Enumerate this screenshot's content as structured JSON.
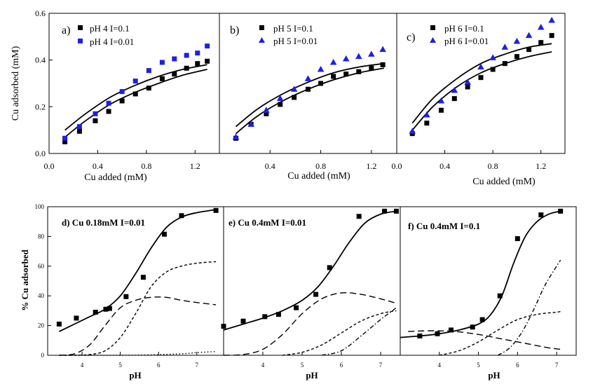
{
  "colors": {
    "black": "#000000",
    "blue": "#1f1fe6"
  },
  "chart_data": [
    {
      "type": "scatter",
      "panel": "a)",
      "xlabel": "Cu added (mM)",
      "ylabel": "Cu adsorbed (mM)",
      "xlim": [
        0.0,
        1.4
      ],
      "ylim": [
        0.0,
        0.6
      ],
      "xticks": [
        "0.0",
        "0.4",
        "0.8",
        "1.2"
      ],
      "yticks": [
        "0.0",
        "0.2",
        "0.4",
        "0.6"
      ],
      "legend": "top-left",
      "series": [
        {
          "name": "pH 4 I=0.1",
          "marker": "square",
          "color": "#000000",
          "x": [
            0.13,
            0.25,
            0.38,
            0.49,
            0.6,
            0.71,
            0.82,
            0.93,
            1.03,
            1.13,
            1.22,
            1.3
          ],
          "y": [
            0.05,
            0.095,
            0.14,
            0.18,
            0.225,
            0.255,
            0.28,
            0.32,
            0.34,
            0.365,
            0.385,
            0.395
          ]
        },
        {
          "name": "pH 4 I=0.01",
          "marker": "square",
          "color": "#1f1fe6",
          "x": [
            0.13,
            0.25,
            0.38,
            0.49,
            0.6,
            0.71,
            0.82,
            0.93,
            1.03,
            1.13,
            1.22,
            1.3
          ],
          "y": [
            0.065,
            0.115,
            0.17,
            0.215,
            0.265,
            0.31,
            0.355,
            0.39,
            0.405,
            0.42,
            0.43,
            0.46
          ]
        }
      ],
      "fits": [
        {
          "x": [
            0.13,
            0.3,
            0.5,
            0.7,
            0.9,
            1.1,
            1.3
          ],
          "y": [
            0.1,
            0.17,
            0.24,
            0.29,
            0.33,
            0.36,
            0.38
          ]
        },
        {
          "x": [
            0.13,
            0.3,
            0.5,
            0.7,
            0.9,
            1.1,
            1.3
          ],
          "y": [
            0.07,
            0.14,
            0.21,
            0.26,
            0.3,
            0.335,
            0.36
          ]
        }
      ]
    },
    {
      "type": "scatter",
      "panel": "b)",
      "xlabel": "Cu added (mM)",
      "xlim": [
        0.0,
        1.4
      ],
      "ylim": [
        0.0,
        0.6
      ],
      "xticks": [
        "0.4",
        "0.8",
        "1.2"
      ],
      "legend": "top-left",
      "series": [
        {
          "name": "pH 5 I=0.1",
          "marker": "square",
          "color": "#000000",
          "x": [
            0.13,
            0.25,
            0.37,
            0.48,
            0.59,
            0.7,
            0.8,
            0.9,
            1.0,
            1.1,
            1.2,
            1.29
          ],
          "y": [
            0.065,
            0.125,
            0.17,
            0.21,
            0.24,
            0.275,
            0.3,
            0.33,
            0.34,
            0.35,
            0.365,
            0.38
          ]
        },
        {
          "name": "pH 5 I=0.01",
          "marker": "triangle",
          "color": "#1f1fe6",
          "x": [
            0.13,
            0.25,
            0.37,
            0.48,
            0.59,
            0.7,
            0.8,
            0.9,
            1.0,
            1.1,
            1.2,
            1.29
          ],
          "y": [
            0.07,
            0.125,
            0.185,
            0.235,
            0.275,
            0.32,
            0.36,
            0.39,
            0.405,
            0.415,
            0.425,
            0.445
          ]
        }
      ],
      "fits": [
        {
          "x": [
            0.13,
            0.3,
            0.5,
            0.7,
            0.9,
            1.1,
            1.3
          ],
          "y": [
            0.115,
            0.19,
            0.255,
            0.305,
            0.345,
            0.37,
            0.385
          ]
        },
        {
          "x": [
            0.13,
            0.3,
            0.5,
            0.7,
            0.9,
            1.1,
            1.3
          ],
          "y": [
            0.085,
            0.16,
            0.225,
            0.275,
            0.315,
            0.345,
            0.365
          ]
        }
      ]
    },
    {
      "type": "scatter",
      "panel": "c)",
      "xlabel": "Cu added (mM)",
      "xlim": [
        0.0,
        1.4
      ],
      "ylim": [
        0.0,
        0.6
      ],
      "xticks": [
        "0.0",
        "0.4",
        "0.8",
        "1.2"
      ],
      "legend": "top-left",
      "series": [
        {
          "name": "pH 6 I=0.1",
          "marker": "square",
          "color": "#000000",
          "x": [
            0.13,
            0.25,
            0.37,
            0.48,
            0.59,
            0.7,
            0.8,
            0.9,
            1.0,
            1.1,
            1.2,
            1.29
          ],
          "y": [
            0.085,
            0.13,
            0.185,
            0.235,
            0.285,
            0.325,
            0.36,
            0.385,
            0.415,
            0.445,
            0.475,
            0.505
          ]
        },
        {
          "name": "pH 6 I=0.01",
          "marker": "triangle",
          "color": "#1f1fe6",
          "x": [
            0.13,
            0.25,
            0.37,
            0.48,
            0.59,
            0.7,
            0.8,
            0.9,
            1.0,
            1.1,
            1.2,
            1.29
          ],
          "y": [
            0.095,
            0.165,
            0.225,
            0.27,
            0.305,
            0.37,
            0.41,
            0.455,
            0.48,
            0.505,
            0.54,
            0.57
          ]
        }
      ],
      "fits": [
        {
          "x": [
            0.13,
            0.3,
            0.5,
            0.7,
            0.9,
            1.1,
            1.29
          ],
          "y": [
            0.13,
            0.235,
            0.32,
            0.385,
            0.425,
            0.455,
            0.47
          ]
        },
        {
          "x": [
            0.13,
            0.3,
            0.5,
            0.7,
            0.9,
            1.1,
            1.29
          ],
          "y": [
            0.1,
            0.2,
            0.285,
            0.345,
            0.385,
            0.415,
            0.435
          ]
        }
      ]
    },
    {
      "type": "line",
      "panel": "d) Cu 0.18mM I=0.01",
      "xlabel": "pH",
      "ylabel": "% Cu adsorbed",
      "xlim": [
        3.1,
        7.7
      ],
      "ylim": [
        0,
        100
      ],
      "xticks": [
        "4",
        "5",
        "6",
        "7"
      ],
      "yticks": [
        "0",
        "20",
        "40",
        "60",
        "80",
        "100"
      ],
      "points": {
        "x": [
          3.4,
          3.85,
          4.35,
          4.62,
          4.72,
          5.15,
          5.6,
          6.15,
          6.6,
          7.5
        ],
        "y": [
          21,
          25,
          29,
          31,
          31.5,
          39.5,
          52.5,
          81.5,
          94,
          97.5
        ]
      },
      "lines": [
        {
          "style": "solid",
          "x": [
            3.4,
            3.8,
            4.2,
            4.6,
            5.0,
            5.4,
            5.8,
            6.2,
            6.6,
            7.0,
            7.5
          ],
          "y": [
            16,
            21,
            26,
            31,
            40,
            55,
            72,
            86,
            93,
            96,
            98
          ]
        },
        {
          "style": "dashed",
          "x": [
            3.4,
            3.8,
            4.2,
            4.6,
            5.0,
            5.4,
            5.8,
            6.2,
            6.6,
            7.0,
            7.5
          ],
          "y": [
            0,
            0,
            0.5,
            3,
            12,
            28,
            46,
            56,
            60,
            62,
            63
          ]
        },
        {
          "style": "long-dashed",
          "x": [
            3.4,
            3.8,
            4.2,
            4.6,
            5.0,
            5.4,
            5.8,
            6.2,
            6.6,
            7.0,
            7.5
          ],
          "y": [
            0,
            1,
            7,
            20,
            32,
            37,
            39,
            39,
            37,
            35.5,
            34
          ]
        },
        {
          "style": "dotted",
          "x": [
            3.4,
            4.2,
            5.0,
            5.8,
            6.6,
            7.0,
            7.5
          ],
          "y": [
            0,
            0,
            0,
            0.3,
            1,
            1.8,
            2.5
          ]
        }
      ]
    },
    {
      "type": "line",
      "panel": "e) Cu 0.4mM I=0.01",
      "xlabel": "pH",
      "xlim": [
        3.0,
        7.5
      ],
      "ylim": [
        0,
        100
      ],
      "xticks": [
        "4",
        "5",
        "6",
        "7"
      ],
      "points": {
        "x": [
          3.0,
          3.5,
          4.05,
          4.4,
          4.85,
          5.35,
          5.7,
          6.45,
          7.1,
          7.4
        ],
        "y": [
          19.5,
          23,
          26,
          27.5,
          32,
          41,
          59,
          93.5,
          97,
          97
        ]
      },
      "lines": [
        {
          "style": "solid",
          "x": [
            3.0,
            3.5,
            4.0,
            4.5,
            5.0,
            5.4,
            5.8,
            6.2,
            6.6,
            7.0,
            7.4
          ],
          "y": [
            17,
            21,
            25,
            30,
            37,
            46,
            60,
            76,
            89,
            95,
            97
          ]
        },
        {
          "style": "long-dashed",
          "x": [
            3.0,
            3.5,
            4.0,
            4.5,
            5.0,
            5.5,
            6.0,
            6.5,
            7.0,
            7.4
          ],
          "y": [
            0,
            0.5,
            4,
            14,
            28,
            38,
            42,
            41,
            38,
            35
          ]
        },
        {
          "style": "dashed",
          "x": [
            4.5,
            5.0,
            5.5,
            6.0,
            6.5,
            7.0,
            7.4
          ],
          "y": [
            0,
            2,
            7,
            15,
            23,
            28,
            30
          ]
        },
        {
          "style": "dash-dot",
          "x": [
            5.5,
            6.0,
            6.5,
            7.0,
            7.4
          ],
          "y": [
            0,
            3,
            13,
            24,
            32
          ]
        }
      ]
    },
    {
      "type": "line",
      "panel": "f) Cu 0.4mM I=0.1",
      "xlabel": "pH",
      "xlim": [
        3.0,
        7.5
      ],
      "ylim": [
        0,
        100
      ],
      "xticks": [
        "4",
        "5",
        "6",
        "7"
      ],
      "points": {
        "x": [
          3.5,
          3.95,
          4.3,
          4.85,
          5.1,
          5.55,
          6.0,
          6.6,
          7.1
        ],
        "y": [
          13,
          14.5,
          17,
          19,
          24,
          40,
          78.5,
          94.5,
          97
        ]
      },
      "lines": [
        {
          "style": "solid",
          "x": [
            3.0,
            3.5,
            4.0,
            4.5,
            5.0,
            5.3,
            5.6,
            5.9,
            6.2,
            6.5,
            6.8,
            7.1
          ],
          "y": [
            12,
            13,
            14.5,
            17,
            21,
            27,
            40,
            62,
            80,
            90,
            95,
            97
          ]
        },
        {
          "style": "dashed",
          "x": [
            4.0,
            4.5,
            5.0,
            5.5,
            6.0,
            6.5,
            7.0,
            7.1
          ],
          "y": [
            0,
            3,
            9,
            17,
            24,
            27.5,
            29,
            29.5
          ]
        },
        {
          "style": "long-dashed",
          "x": [
            3.2,
            3.8,
            4.4,
            5.0,
            5.6,
            6.2,
            6.8,
            7.1
          ],
          "y": [
            16,
            16.5,
            16,
            14,
            11,
            8,
            5,
            4
          ]
        },
        {
          "style": "dash-dot",
          "x": [
            5.5,
            5.8,
            6.1,
            6.4,
            6.7,
            7.0,
            7.1
          ],
          "y": [
            0,
            5,
            15,
            30,
            47,
            60,
            64
          ]
        }
      ]
    }
  ]
}
